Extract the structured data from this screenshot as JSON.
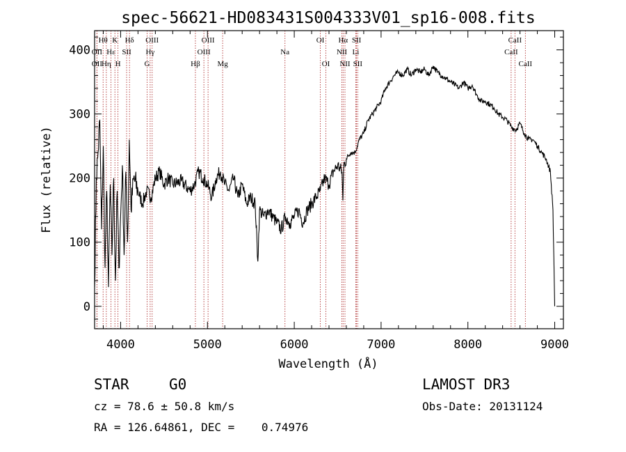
{
  "chart_data": {
    "type": "line",
    "title": "spec-56621-HD083431S004333V01_sp16-008.fits",
    "xlabel": "Wavelength (Å)",
    "ylabel": "Flux (relative)",
    "xlim": [
      3700,
      9100
    ],
    "ylim": [
      -35,
      430
    ],
    "x_ticks": [
      4000,
      5000,
      6000,
      7000,
      8000,
      9000
    ],
    "y_ticks": [
      0,
      100,
      200,
      300,
      400
    ],
    "series": [
      {
        "name": "spectrum",
        "x": [
          3700,
          3720,
          3740,
          3760,
          3780,
          3800,
          3820,
          3840,
          3860,
          3880,
          3900,
          3920,
          3940,
          3960,
          3980,
          4000,
          4020,
          4040,
          4060,
          4080,
          4100,
          4120,
          4150,
          4200,
          4250,
          4300,
          4350,
          4400,
          4450,
          4500,
          4550,
          4600,
          4700,
          4800,
          4850,
          4900,
          4950,
          5000,
          5050,
          5100,
          5150,
          5200,
          5250,
          5300,
          5350,
          5400,
          5450,
          5500,
          5550,
          5580,
          5600,
          5650,
          5700,
          5750,
          5800,
          5850,
          5900,
          5950,
          6000,
          6050,
          6100,
          6150,
          6200,
          6250,
          6300,
          6350,
          6400,
          6450,
          6500,
          6550,
          6560,
          6570,
          6600,
          6650,
          6700,
          6750,
          6800,
          6850,
          6900,
          6950,
          7000,
          7050,
          7100,
          7150,
          7200,
          7250,
          7300,
          7350,
          7400,
          7450,
          7500,
          7550,
          7600,
          7650,
          7700,
          7750,
          7800,
          7850,
          7900,
          7950,
          8000,
          8050,
          8100,
          8150,
          8200,
          8250,
          8300,
          8350,
          8400,
          8450,
          8500,
          8550,
          8600,
          8650,
          8700,
          8750,
          8800,
          8850,
          8900,
          8950,
          8980,
          9000
        ],
        "y": [
          30,
          200,
          240,
          290,
          120,
          250,
          60,
          180,
          30,
          190,
          80,
          200,
          40,
          180,
          60,
          140,
          220,
          80,
          210,
          100,
          260,
          150,
          200,
          180,
          160,
          180,
          170,
          200,
          210,
          190,
          200,
          190,
          195,
          180,
          190,
          210,
          200,
          190,
          170,
          200,
          210,
          190,
          180,
          200,
          170,
          190,
          160,
          170,
          160,
          70,
          150,
          140,
          150,
          140,
          130,
          120,
          140,
          130,
          140,
          150,
          130,
          150,
          160,
          170,
          180,
          200,
          190,
          210,
          220,
          210,
          165,
          220,
          230,
          240,
          240,
          260,
          270,
          290,
          300,
          310,
          320,
          340,
          350,
          360,
          365,
          360,
          370,
          360,
          370,
          365,
          370,
          360,
          375,
          365,
          360,
          355,
          350,
          345,
          340,
          350,
          340,
          345,
          330,
          320,
          320,
          315,
          310,
          300,
          295,
          290,
          280,
          275,
          285,
          270,
          260,
          260,
          250,
          240,
          230,
          210,
          150,
          0
        ]
      }
    ],
    "spectral_lines": [
      {
        "label": "Hθ",
        "x": 3798,
        "row": 0
      },
      {
        "label": "OII",
        "x": 3727,
        "row": 1
      },
      {
        "label": "OII",
        "x": 3727,
        "row": 2
      },
      {
        "label": "K",
        "x": 3934,
        "row": 0
      },
      {
        "label": "Hε",
        "x": 3889,
        "row": 1
      },
      {
        "label": "Hη",
        "x": 3835,
        "row": 2
      },
      {
        "label": "SII",
        "x": 4069,
        "row": 1
      },
      {
        "label": "H",
        "x": 3969,
        "row": 2
      },
      {
        "label": "Hδ",
        "x": 4102,
        "row": 0
      },
      {
        "label": "OIII",
        "x": 4363,
        "row": 0
      },
      {
        "label": "Hγ",
        "x": 4340,
        "row": 1
      },
      {
        "label": "G",
        "x": 4305,
        "row": 2
      },
      {
        "label": "OIII",
        "x": 5007,
        "row": 0
      },
      {
        "label": "OIII",
        "x": 4959,
        "row": 1
      },
      {
        "label": "Hβ",
        "x": 4861,
        "row": 2
      },
      {
        "label": "Mg",
        "x": 5175,
        "row": 2
      },
      {
        "label": "Na",
        "x": 5893,
        "row": 1
      },
      {
        "label": "OI",
        "x": 6300,
        "row": 0
      },
      {
        "label": "OI",
        "x": 6364,
        "row": 2
      },
      {
        "label": "Hα",
        "x": 6563,
        "row": 0
      },
      {
        "label": "SII",
        "x": 6717,
        "row": 0
      },
      {
        "label": "NII",
        "x": 6548,
        "row": 1
      },
      {
        "label": "Li",
        "x": 6708,
        "row": 1
      },
      {
        "label": "NII",
        "x": 6584,
        "row": 2
      },
      {
        "label": "SII",
        "x": 6731,
        "row": 2
      },
      {
        "label": "CaII",
        "x": 8542,
        "row": 0
      },
      {
        "label": "CaII",
        "x": 8498,
        "row": 1
      },
      {
        "label": "CaII",
        "x": 8662,
        "row": 2
      }
    ]
  },
  "info": {
    "object_class": "STAR",
    "subclass": "G0",
    "survey": "LAMOST DR3",
    "redshift": "cz = 78.6 ± 50.8 km/s",
    "obs_date": "Obs-Date: 20131124",
    "coords": "RA = 126.64861, DEC =    0.74976"
  },
  "colors": {
    "axis": "#000000",
    "spectrum": "#000000",
    "line_marker": "#b03030",
    "background": "#ffffff"
  }
}
